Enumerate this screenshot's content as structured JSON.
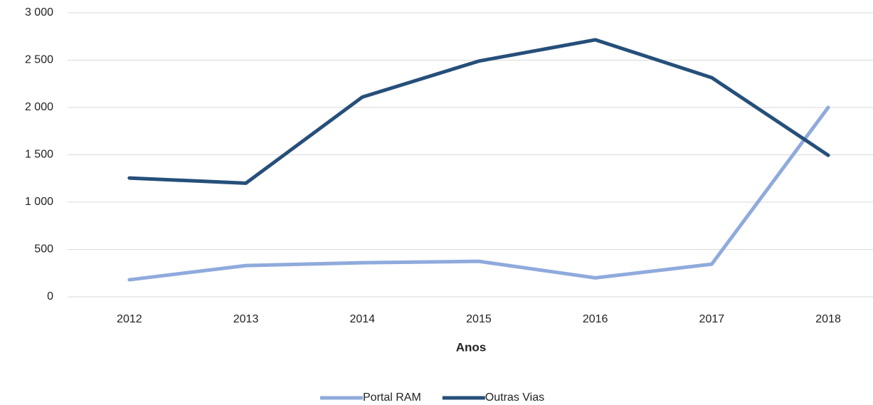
{
  "chart_data": {
    "type": "line",
    "x_label": "Anos",
    "categories": [
      "2012",
      "2013",
      "2014",
      "2015",
      "2016",
      "2017",
      "2018"
    ],
    "series": [
      {
        "name": "Portal RAM",
        "color": "#8faadc",
        "values": [
          180,
          330,
          360,
          375,
          200,
          345,
          2000
        ]
      },
      {
        "name": "Outras Vias",
        "color": "#264f7a",
        "values": [
          1255,
          1200,
          2110,
          2490,
          2715,
          2315,
          1495
        ]
      }
    ],
    "ylim": [
      0,
      3000
    ],
    "yticks": [
      0,
      500,
      {
        "value": 1000,
        "label": "1 000"
      },
      {
        "value": 1500,
        "label": "1 500"
      },
      {
        "value": 2000,
        "label": "2 000"
      },
      {
        "value": 2500,
        "label": "2 500"
      },
      {
        "value": 3000,
        "label": "3 000"
      }
    ],
    "grid": true,
    "legend": "bottom"
  }
}
